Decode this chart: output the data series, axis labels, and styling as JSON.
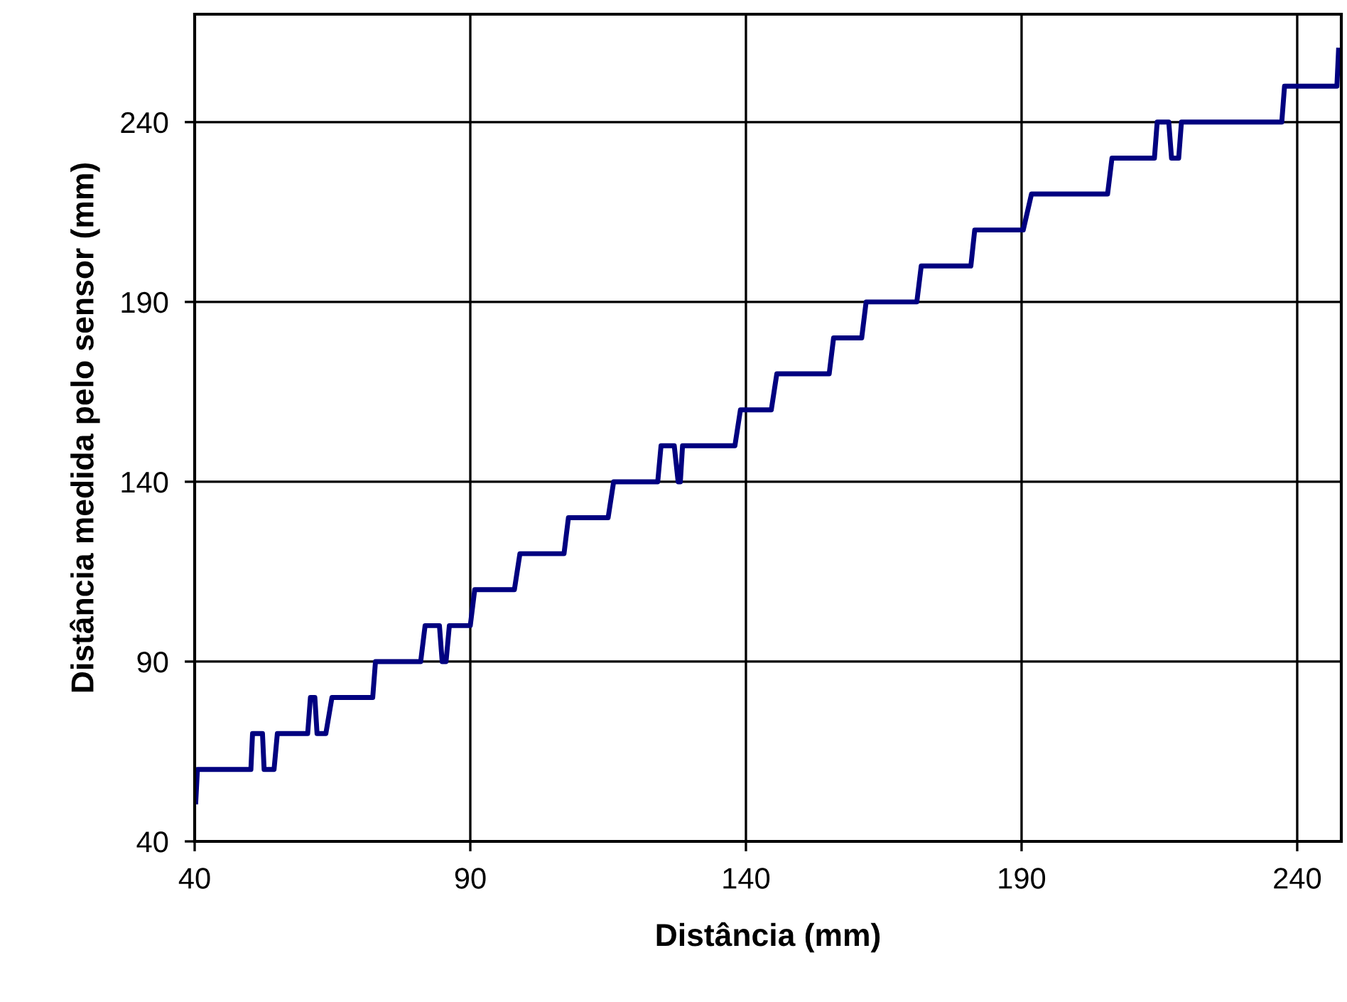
{
  "chart_data": {
    "type": "line",
    "xlabel": "Distância (mm)",
    "ylabel": "Distância medida pelo sensor (mm)",
    "xlim": [
      40,
      248
    ],
    "ylim": [
      40,
      270
    ],
    "xticks": [
      40,
      90,
      140,
      190,
      240
    ],
    "yticks": [
      40,
      90,
      140,
      190,
      240
    ],
    "grid": true,
    "marker": "none",
    "line_style": "solid",
    "series": [
      {
        "color": "#000080",
        "x": [
          40.2,
          40.5,
          50.2,
          50.5,
          52.3,
          52.6,
          54.4,
          55,
          60.5,
          61,
          61.8,
          62.2,
          63.8,
          64.9,
          72.3,
          72.8,
          81,
          81.8,
          84.4,
          84.9,
          85.6,
          86.2,
          90,
          90.8,
          98,
          99,
          107,
          107.8,
          115,
          116,
          124,
          124.6,
          127,
          127.7,
          128.1,
          128.5,
          138,
          139,
          144.6,
          145.6,
          155.1,
          155.9,
          161,
          161.8,
          171,
          171.8,
          180.8,
          181.5,
          190.3,
          191.8,
          205.6,
          206.4,
          214.1,
          214.6,
          216.7,
          217.2,
          218.5,
          219,
          237.2,
          237.7,
          247.2,
          247.5
        ],
        "values": [
          51,
          60,
          60,
          70,
          70,
          60,
          60,
          70,
          70,
          80,
          80,
          70,
          70,
          80,
          80,
          90,
          90,
          100,
          100,
          90,
          90,
          100,
          100,
          110,
          110,
          120,
          120,
          130,
          130,
          140,
          140,
          150,
          150,
          140,
          140,
          150,
          150,
          160,
          160,
          170,
          170,
          180,
          180,
          190,
          190,
          200,
          200,
          210,
          210,
          220,
          220,
          230,
          230,
          240,
          240,
          230,
          230,
          240,
          240,
          250,
          250,
          260
        ]
      }
    ]
  }
}
